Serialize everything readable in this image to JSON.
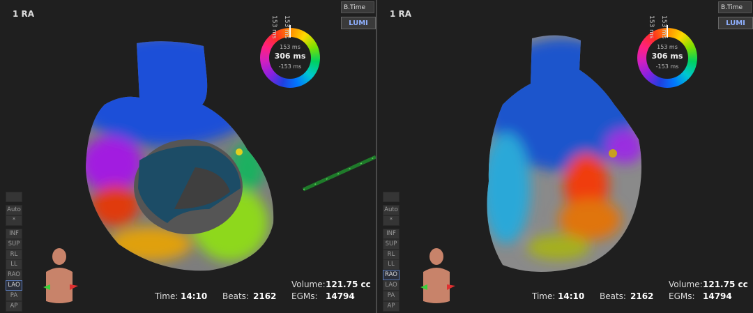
{
  "panels": [
    {
      "title": "1 RA",
      "dropdown": "B.Time",
      "logo": "LUMI",
      "scale": {
        "top_labels": [
          "153 ms",
          "153 ms"
        ],
        "upper": "153 ms",
        "total": "306 ms",
        "lower": "-153 ms"
      },
      "tool_buttons": [
        "Auto",
        "*"
      ],
      "view_buttons": [
        {
          "label": "INF",
          "selected": false
        },
        {
          "label": "SUP",
          "selected": false
        },
        {
          "label": "RL",
          "selected": false
        },
        {
          "label": "LL",
          "selected": false
        },
        {
          "label": "RAO",
          "selected": false
        },
        {
          "label": "LAO",
          "selected": true
        },
        {
          "label": "PA",
          "selected": false
        },
        {
          "label": "AP",
          "selected": false
        }
      ],
      "stats": {
        "time_label": "Time:",
        "time": "14:10",
        "beats_label": "Beats:",
        "beats": "2162",
        "volume_label": "Volume:",
        "volume": "121.75 cc",
        "egms_label": "EGMs:",
        "egms": "14794"
      }
    },
    {
      "title": "1 RA",
      "dropdown": "B.Time",
      "logo": "LUMI",
      "scale": {
        "top_labels": [
          "153 ms",
          "153 ms"
        ],
        "upper": "153 ms",
        "total": "306 ms",
        "lower": "-153 ms"
      },
      "tool_buttons": [
        "Auto",
        "*"
      ],
      "view_buttons": [
        {
          "label": "INF",
          "selected": false
        },
        {
          "label": "SUP",
          "selected": false
        },
        {
          "label": "RL",
          "selected": false
        },
        {
          "label": "LL",
          "selected": false
        },
        {
          "label": "RAO",
          "selected": true
        },
        {
          "label": "LAO",
          "selected": false
        },
        {
          "label": "PA",
          "selected": false
        },
        {
          "label": "AP",
          "selected": false
        }
      ],
      "stats": {
        "time_label": "Time:",
        "time": "14:10",
        "beats_label": "Beats:",
        "beats": "2162",
        "volume_label": "Volume:",
        "volume": "121.75 cc",
        "egms_label": "EGMs:",
        "egms": "14794"
      }
    }
  ]
}
